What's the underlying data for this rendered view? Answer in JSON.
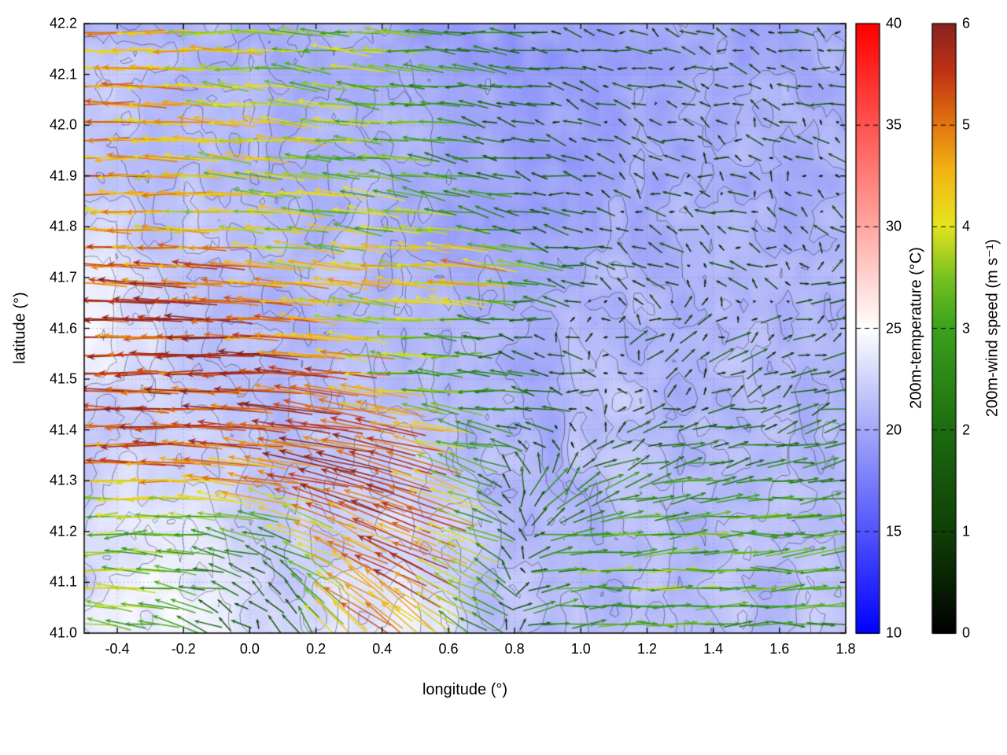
{
  "figure": {
    "background": "#ffffff"
  },
  "chart_data": {
    "type": "heatmap",
    "subtype": "quiver-vector-field-over-temperature-heatmap-with-contours",
    "title": "",
    "xlabel": "longitude (°)",
    "ylabel": "latitude (°)",
    "xlim": [
      -0.5,
      1.8
    ],
    "ylim": [
      41.0,
      42.2
    ],
    "xticks": [
      -0.4,
      -0.2,
      0.0,
      0.2,
      0.4,
      0.6,
      0.8,
      1.0,
      1.2,
      1.4,
      1.6,
      1.8
    ],
    "xtick_labels": [
      "-0.4",
      "-0.2",
      "0.0",
      "0.2",
      "0.4",
      "0.6",
      "0.8",
      "1.0",
      "1.2",
      "1.4",
      "1.6",
      "1.8"
    ],
    "yticks": [
      41.0,
      41.1,
      41.2,
      41.3,
      41.4,
      41.5,
      41.6,
      41.7,
      41.8,
      41.9,
      42.0,
      42.1,
      42.2
    ],
    "ytick_labels": [
      "41.0",
      "41.1",
      "41.2",
      "41.3",
      "41.4",
      "41.5",
      "41.6",
      "41.7",
      "41.8",
      "41.9",
      "42.0",
      "42.1",
      "42.2"
    ],
    "grid": "dotted",
    "legend_position": "none",
    "colorbars": [
      {
        "id": "temperature",
        "label": "200m-temperature (°C)",
        "range": [
          10,
          40
        ],
        "ticks": [
          10,
          15,
          20,
          25,
          30,
          35,
          40
        ],
        "tick_labels": [
          "10",
          "15",
          "20",
          "25",
          "30",
          "35",
          "40"
        ],
        "stops": [
          [
            0,
            "#0000ff"
          ],
          [
            0.35,
            "#aab0f8"
          ],
          [
            0.5,
            "#ffffff"
          ],
          [
            0.65,
            "#ffb0aa"
          ],
          [
            1,
            "#ff0000"
          ]
        ]
      },
      {
        "id": "wind-speed",
        "label": "200m-wind speed (m s⁻¹)",
        "range": [
          0,
          6
        ],
        "ticks": [
          0,
          1,
          2,
          3,
          4,
          5,
          6
        ],
        "tick_labels": [
          "0",
          "1",
          "2",
          "3",
          "4",
          "5",
          "6"
        ],
        "stops": [
          [
            0,
            "#000000"
          ],
          [
            0.15,
            "#0e3a06"
          ],
          [
            0.33,
            "#1c6b10"
          ],
          [
            0.5,
            "#3aa11c"
          ],
          [
            0.58,
            "#73c020"
          ],
          [
            0.67,
            "#e6e41e"
          ],
          [
            0.76,
            "#f2b414"
          ],
          [
            0.84,
            "#e0720e"
          ],
          [
            0.92,
            "#c23214"
          ],
          [
            1,
            "#86231f"
          ]
        ]
      }
    ],
    "contour_levels": [
      20.6,
      21.4,
      22.2,
      23.0,
      23.8
    ],
    "temperature_field": {
      "unit": "°C",
      "lon": [
        -0.5,
        -0.3,
        -0.1,
        0.1,
        0.3,
        0.5,
        0.7,
        0.9,
        1.1,
        1.3,
        1.5,
        1.8
      ],
      "lat": [
        41.0,
        41.2,
        41.4,
        41.6,
        41.8,
        42.0,
        42.2
      ],
      "values": [
        [
          23.5,
          24.5,
          24.0,
          22.5,
          23.5,
          24.0,
          22.0,
          21.0,
          21.5,
          21.5,
          21.5,
          21.5
        ],
        [
          22.5,
          24.0,
          23.5,
          22.0,
          22.5,
          23.0,
          21.5,
          21.0,
          21.0,
          21.0,
          21.5,
          21.0
        ],
        [
          22.0,
          22.5,
          22.0,
          21.5,
          22.0,
          21.5,
          21.0,
          20.5,
          22.0,
          21.0,
          21.0,
          21.0
        ],
        [
          24.5,
          23.0,
          21.5,
          21.0,
          21.5,
          21.0,
          20.5,
          20.5,
          21.0,
          20.5,
          21.0,
          21.0
        ],
        [
          23.0,
          22.0,
          21.5,
          21.0,
          21.0,
          20.5,
          20.0,
          20.0,
          20.5,
          20.5,
          20.5,
          21.0
        ],
        [
          22.0,
          21.5,
          21.0,
          21.0,
          20.5,
          20.5,
          20.0,
          19.5,
          20.0,
          20.0,
          20.5,
          20.5
        ],
        [
          21.5,
          21.0,
          21.0,
          20.5,
          20.5,
          20.0,
          19.5,
          19.5,
          20.0,
          20.0,
          20.0,
          20.5
        ]
      ]
    },
    "wind_field": {
      "unit": "m s⁻¹",
      "lon": [
        -0.5,
        -0.3,
        -0.1,
        0.1,
        0.3,
        0.5,
        0.7,
        0.9,
        1.1,
        1.3,
        1.5,
        1.8
      ],
      "lat": [
        41.0,
        41.1,
        41.2,
        41.3,
        41.4,
        41.5,
        41.6,
        41.7,
        41.8,
        41.9,
        42.0,
        42.1,
        42.2
      ],
      "u": [
        [
          -3.5,
          -3.0,
          -1.5,
          0.0,
          -3.5,
          -4.0,
          -2.0,
          2.0,
          3.0,
          3.0,
          3.0,
          2.5
        ],
        [
          -4.0,
          -3.5,
          -2.0,
          -1.0,
          -4.0,
          -4.5,
          -3.0,
          2.5,
          3.2,
          3.2,
          3.0,
          3.0
        ],
        [
          -3.5,
          -3.0,
          -2.5,
          -3.0,
          -4.5,
          -5.0,
          -3.5,
          2.0,
          3.0,
          3.0,
          3.0,
          2.8
        ],
        [
          -4.5,
          -4.5,
          -4.0,
          -5.0,
          -5.5,
          -5.0,
          -2.0,
          1.0,
          2.0,
          2.5,
          2.5,
          2.5
        ],
        [
          -5.5,
          -5.5,
          -5.5,
          -5.5,
          -5.5,
          -4.5,
          -2.5,
          -1.0,
          1.0,
          1.5,
          1.5,
          2.0
        ],
        [
          -5.5,
          -5.5,
          -5.5,
          -5.5,
          -5.0,
          -3.0,
          -2.5,
          -2.0,
          -0.5,
          0.5,
          1.0,
          1.5
        ],
        [
          -5.5,
          -5.5,
          -5.5,
          -5.0,
          -4.0,
          -3.5,
          -2.0,
          -0.5,
          0.5,
          1.0,
          1.0,
          1.2
        ],
        [
          -5.0,
          -5.5,
          -5.0,
          -4.5,
          -4.0,
          -4.5,
          -5.0,
          -2.0,
          -1.0,
          -1.0,
          -0.8,
          1.0
        ],
        [
          -4.5,
          -4.5,
          -4.0,
          -4.0,
          -3.5,
          -3.5,
          -3.0,
          -1.5,
          -1.0,
          -0.8,
          -0.8,
          -0.5
        ],
        [
          -5.0,
          -4.5,
          -4.0,
          -3.5,
          -3.5,
          -3.0,
          -2.0,
          -1.5,
          -1.0,
          -0.8,
          -0.5,
          -0.5
        ],
        [
          -5.0,
          -4.5,
          -4.0,
          -4.0,
          -3.5,
          -3.0,
          -1.5,
          -1.0,
          -0.8,
          -0.5,
          -0.5,
          -0.8
        ],
        [
          -4.5,
          -4.5,
          -4.0,
          -3.5,
          -3.5,
          -3.0,
          -2.0,
          -1.5,
          -1.0,
          -1.0,
          -1.0,
          -0.8
        ],
        [
          -4.5,
          -4.5,
          -4.0,
          -3.5,
          -3.5,
          -3.0,
          -2.0,
          -1.5,
          -1.0,
          -1.0,
          -1.2,
          -1.0
        ]
      ],
      "v": [
        [
          0.5,
          0.5,
          1.0,
          1.5,
          3.5,
          3.0,
          1.0,
          0.5,
          0.0,
          0.0,
          0.0,
          0.0
        ],
        [
          0.0,
          0.5,
          0.5,
          1.0,
          2.5,
          2.5,
          1.5,
          0.5,
          0.0,
          0.0,
          0.0,
          0.3
        ],
        [
          -0.5,
          0.0,
          0.5,
          1.0,
          2.0,
          2.0,
          1.0,
          0.5,
          0.2,
          0.2,
          0.0,
          0.3
        ],
        [
          0.0,
          0.0,
          0.5,
          1.0,
          1.5,
          1.5,
          1.0,
          2.0,
          1.0,
          0.5,
          0.3,
          0.5
        ],
        [
          0.0,
          0.0,
          0.2,
          0.5,
          1.0,
          1.0,
          0.5,
          0.5,
          0.5,
          0.3,
          0.3,
          0.5
        ],
        [
          0.0,
          0.0,
          0.0,
          0.3,
          0.5,
          0.0,
          0.0,
          0.2,
          0.3,
          0.5,
          0.5,
          0.5
        ],
        [
          0.2,
          0.0,
          0.0,
          0.3,
          0.5,
          0.3,
          0.2,
          0.3,
          0.5,
          0.5,
          0.3,
          0.5
        ],
        [
          0.3,
          0.2,
          0.3,
          0.5,
          0.5,
          0.5,
          0.5,
          0.3,
          0.3,
          0.5,
          0.3,
          0.5
        ],
        [
          0.0,
          0.3,
          0.3,
          0.5,
          0.5,
          0.5,
          0.5,
          0.3,
          0.3,
          0.3,
          0.3,
          0.5
        ],
        [
          0.0,
          0.0,
          0.3,
          0.3,
          0.5,
          0.5,
          0.3,
          0.3,
          0.3,
          0.3,
          0.3,
          0.3
        ],
        [
          0.0,
          0.2,
          0.3,
          0.3,
          0.3,
          0.3,
          0.3,
          0.3,
          0.5,
          0.3,
          0.3,
          0.3
        ],
        [
          0.0,
          0.0,
          0.2,
          0.3,
          0.3,
          0.3,
          0.3,
          0.3,
          0.3,
          0.3,
          0.3,
          0.3
        ],
        [
          0.0,
          0.0,
          0.0,
          0.3,
          0.3,
          0.3,
          0.3,
          0.3,
          0.3,
          0.3,
          0.3,
          0.3
        ]
      ]
    }
  }
}
